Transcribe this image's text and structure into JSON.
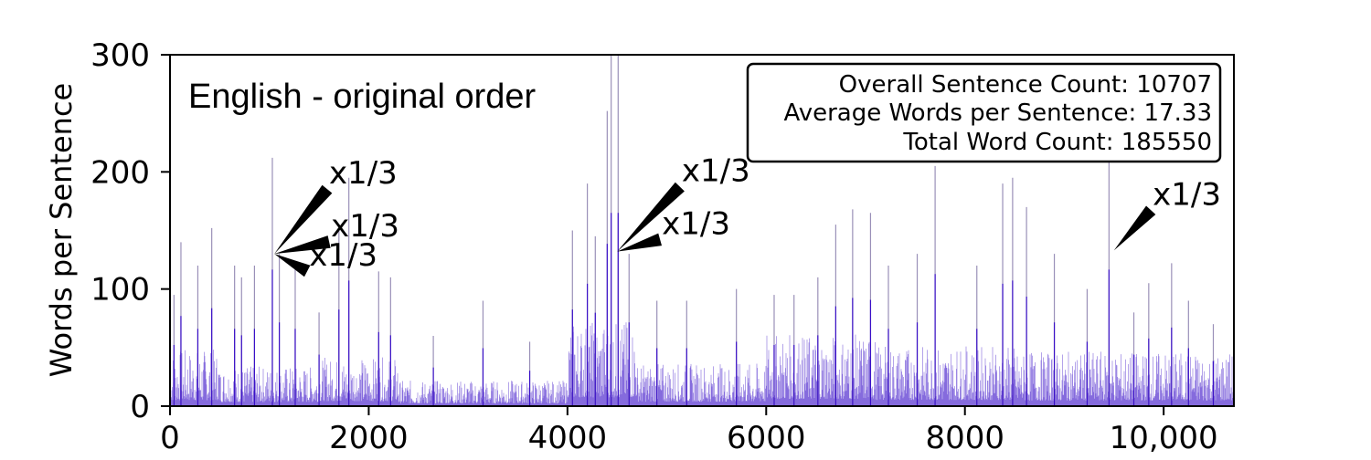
{
  "chart_data": {
    "type": "bar",
    "title": "English - original order",
    "xlabel": "",
    "ylabel": "Words per Sentence",
    "xlim": [
      0,
      10707
    ],
    "ylim": [
      0,
      300
    ],
    "x_ticks": [
      0,
      2000,
      4000,
      6000,
      8000,
      10000
    ],
    "x_tick_labels": [
      "0",
      "2000",
      "4000",
      "6000",
      "8000",
      "10,000"
    ],
    "y_ticks": [
      0,
      100,
      200,
      300
    ],
    "y_tick_labels": [
      "0",
      "100",
      "200",
      "300"
    ],
    "grid": false,
    "bar_color": "#3a10c8",
    "peak_color": "#9a90b8",
    "stats_box": {
      "placement": "top-right",
      "lines": [
        "Overall Sentence Count: 10707",
        "Average Words per Sentence: 17.33",
        "Total Word Count: 185550"
      ]
    },
    "sentence_count": 10707,
    "average_words_per_sentence": 17.33,
    "total_word_count": 185550,
    "base_level_segments": [
      {
        "x_start": 0,
        "x_end": 500,
        "level": 20
      },
      {
        "x_start": 500,
        "x_end": 1500,
        "level": 14
      },
      {
        "x_start": 1500,
        "x_end": 2300,
        "level": 17
      },
      {
        "x_start": 2300,
        "x_end": 4000,
        "level": 9
      },
      {
        "x_start": 4000,
        "x_end": 4700,
        "level": 30
      },
      {
        "x_start": 4700,
        "x_end": 6000,
        "level": 15
      },
      {
        "x_start": 6000,
        "x_end": 7100,
        "level": 25
      },
      {
        "x_start": 7100,
        "x_end": 8500,
        "level": 21
      },
      {
        "x_start": 8500,
        "x_end": 10707,
        "level": 19
      }
    ],
    "peaks": [
      {
        "x": 40,
        "y": 95
      },
      {
        "x": 110,
        "y": 140
      },
      {
        "x": 280,
        "y": 120
      },
      {
        "x": 420,
        "y": 152
      },
      {
        "x": 650,
        "y": 120
      },
      {
        "x": 720,
        "y": 110
      },
      {
        "x": 850,
        "y": 120
      },
      {
        "x": 1030,
        "y": 212
      },
      {
        "x": 1100,
        "y": 130
      },
      {
        "x": 1260,
        "y": 120
      },
      {
        "x": 1500,
        "y": 80
      },
      {
        "x": 1700,
        "y": 150
      },
      {
        "x": 1800,
        "y": 195
      },
      {
        "x": 2100,
        "y": 115
      },
      {
        "x": 2220,
        "y": 110
      },
      {
        "x": 2650,
        "y": 60
      },
      {
        "x": 3150,
        "y": 90
      },
      {
        "x": 3620,
        "y": 55
      },
      {
        "x": 4050,
        "y": 150
      },
      {
        "x": 4200,
        "y": 190
      },
      {
        "x": 4280,
        "y": 145
      },
      {
        "x": 4400,
        "y": 252
      },
      {
        "x": 4440,
        "y": 300
      },
      {
        "x": 4510,
        "y": 300
      },
      {
        "x": 4620,
        "y": 130
      },
      {
        "x": 4900,
        "y": 90
      },
      {
        "x": 5200,
        "y": 90
      },
      {
        "x": 5700,
        "y": 100
      },
      {
        "x": 6080,
        "y": 95
      },
      {
        "x": 6280,
        "y": 95
      },
      {
        "x": 6520,
        "y": 110
      },
      {
        "x": 6700,
        "y": 155
      },
      {
        "x": 6870,
        "y": 168
      },
      {
        "x": 7050,
        "y": 165
      },
      {
        "x": 7230,
        "y": 120
      },
      {
        "x": 7520,
        "y": 130
      },
      {
        "x": 7700,
        "y": 205
      },
      {
        "x": 8120,
        "y": 120
      },
      {
        "x": 8380,
        "y": 190
      },
      {
        "x": 8480,
        "y": 195
      },
      {
        "x": 8620,
        "y": 170
      },
      {
        "x": 8900,
        "y": 130
      },
      {
        "x": 9230,
        "y": 100
      },
      {
        "x": 9450,
        "y": 212
      },
      {
        "x": 9700,
        "y": 80
      },
      {
        "x": 9850,
        "y": 105
      },
      {
        "x": 10080,
        "y": 122
      },
      {
        "x": 10250,
        "y": 90
      },
      {
        "x": 10500,
        "y": 70
      }
    ],
    "annotations": [
      {
        "text": "x1/3",
        "point": [
          1050,
          130
        ],
        "text_at": [
          1600,
          190
        ]
      },
      {
        "text": "x1/3",
        "point": [
          1050,
          130
        ],
        "text_at": [
          1620,
          145
        ]
      },
      {
        "text": "x1/3",
        "point": [
          1050,
          130
        ],
        "text_at": [
          1400,
          120
        ]
      },
      {
        "text": "x1/3",
        "point": [
          4500,
          132
        ],
        "text_at": [
          5150,
          192
        ]
      },
      {
        "text": "x1/3",
        "point": [
          4500,
          132
        ],
        "text_at": [
          4950,
          147
        ]
      },
      {
        "text": "x1/3",
        "point": [
          9500,
          133
        ],
        "text_at": [
          9890,
          172
        ]
      }
    ]
  }
}
